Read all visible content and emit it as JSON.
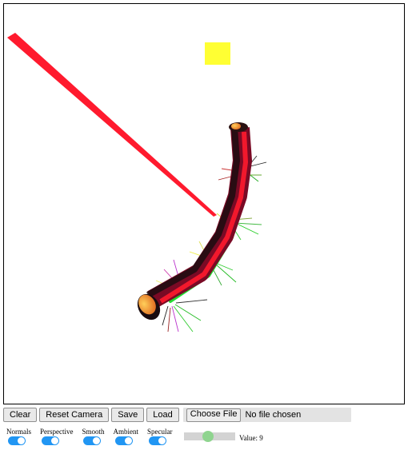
{
  "toolbar": {
    "clear_label": "Clear",
    "reset_camera_label": "Reset Camera",
    "save_label": "Save",
    "load_label": "Load",
    "choose_file_label": "Choose File",
    "file_status": "No file chosen"
  },
  "toggles": [
    {
      "label": "Normals",
      "on": true
    },
    {
      "label": "Perspective",
      "on": true
    },
    {
      "label": "Smooth",
      "on": true
    },
    {
      "label": "Ambient",
      "on": true
    },
    {
      "label": "Specular",
      "on": true
    }
  ],
  "slider": {
    "value": 9,
    "value_text": "Value: 9",
    "fill_fraction": 0.45
  },
  "colors": {
    "toggle_on": "#2196f3",
    "slider_thumb": "#8fd48f",
    "light_square": "#ffff33",
    "ray": "#ff1a2e"
  }
}
